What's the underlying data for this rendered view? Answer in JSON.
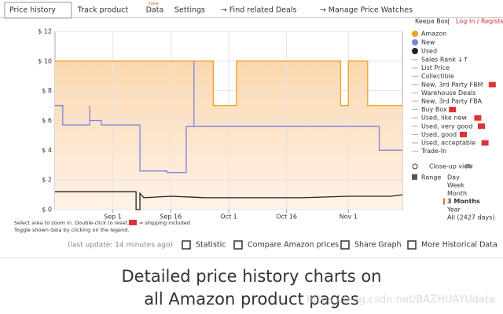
{
  "tabs": [
    {
      "label": "Price history"
    },
    {
      "label": "Track product"
    },
    {
      "label": "Data",
      "badge": "new"
    },
    {
      "label": "Settings"
    },
    {
      "label": "→ Find related Deals"
    },
    {
      "label": "→ Manage Price Watches"
    }
  ],
  "header": {
    "brand": "Keepa Box",
    "login": "Log In / Register"
  },
  "chart_data": {
    "type": "line",
    "ylim": [
      0,
      12
    ],
    "yticks": [
      {
        "value": 0,
        "label": "$ 0"
      },
      {
        "value": 2,
        "label": "$ 2"
      },
      {
        "value": 4,
        "label": "$ 4"
      },
      {
        "value": 6,
        "label": "$ 6"
      },
      {
        "value": 8,
        "label": "$ 8"
      },
      {
        "value": 10,
        "label": "$ 10"
      },
      {
        "value": 12,
        "label": "$ 12"
      }
    ],
    "xlim": [
      "Aug 17",
      "Nov 15"
    ],
    "xticks": [
      "Sep 1",
      "Sep 16",
      "Oct 1",
      "Oct 16",
      "Nov 1"
    ],
    "grid": true,
    "series": [
      {
        "name": "Amazon",
        "color": "#f0a020",
        "area": true,
        "x": [
          "Aug 17",
          "Sep 27",
          "Sep 27",
          "Oct 3",
          "Oct 3",
          "Oct 30",
          "Oct 30",
          "Nov 1",
          "Nov 1",
          "Nov 6",
          "Nov 6",
          "Nov 15"
        ],
        "values": [
          10,
          10,
          7,
          7,
          10,
          10,
          7,
          7,
          10,
          10,
          7,
          7
        ]
      },
      {
        "name": "New",
        "color": "#8080e0",
        "x": [
          "Aug 17",
          "Aug 19",
          "Aug 19",
          "Aug 26",
          "Aug 26",
          "Aug 26",
          "Aug 29",
          "Aug 29",
          "Sep 8",
          "Sep 8",
          "Sep 15",
          "Sep 15",
          "Sep 20",
          "Sep 20",
          "Sep 22",
          "Sep 22",
          "Sep 22",
          "Nov 9",
          "Nov 9",
          "Nov 15"
        ],
        "values": [
          7,
          7,
          5.7,
          5.7,
          7,
          6,
          6,
          5.7,
          5.7,
          2.6,
          2.6,
          2.5,
          2.5,
          5.6,
          5.6,
          10,
          5.6,
          5.6,
          4,
          4
        ]
      },
      {
        "name": "Used",
        "color": "#222222",
        "x": [
          "Aug 17",
          "Sep 7",
          "Sep 7",
          "Sep 8",
          "Sep 8",
          "Sep 9",
          "Sep 16",
          "Sep 25",
          "Oct 10",
          "Oct 20",
          "Nov 1",
          "Nov 12",
          "Nov 15"
        ],
        "values": [
          1.2,
          1.2,
          0,
          0,
          1.1,
          0.8,
          0.9,
          0.8,
          0.8,
          0.8,
          0.9,
          0.9,
          1
        ]
      }
    ]
  },
  "legend_options": [
    {
      "label": "Sales Rank ↓↑"
    },
    {
      "label": "List Price"
    },
    {
      "label": "Collectible"
    },
    {
      "label": "New, 3rd Party FBM",
      "truck": true
    },
    {
      "label": "Warehouse Deals"
    },
    {
      "label": "New, 3rd Party FBA"
    },
    {
      "label": "Buy Box",
      "truck": true
    },
    {
      "label": "Used, like new",
      "truck": true
    },
    {
      "label": "Used, very good",
      "truck": true
    },
    {
      "label": "Used, good",
      "truck": true
    },
    {
      "label": "Used, acceptable",
      "truck": true
    },
    {
      "label": "Trade-In"
    }
  ],
  "closeup": "Close-up view",
  "range": {
    "label": "Range",
    "options": [
      "Day",
      "Week",
      "Month",
      "3 Months",
      "Year",
      "All (2427 days)"
    ],
    "selected": "3 Months"
  },
  "notes": {
    "line1": "Select area to zoom in. Double-click to reset.",
    "shipping": "= shipping included",
    "line2": "Toggle shown data by clicking on the legend."
  },
  "footer": {
    "last_update": "(last update: 14 minutes ago)",
    "buttons": [
      "Statistic",
      "Compare Amazon prices",
      "Share Graph",
      "More Historical Data"
    ]
  },
  "caption": {
    "line1": "Detailed price history charts on",
    "line2": "all Amazon product pages"
  },
  "watermark": "https://blog.csdn.net/BAZHUAYUdata"
}
